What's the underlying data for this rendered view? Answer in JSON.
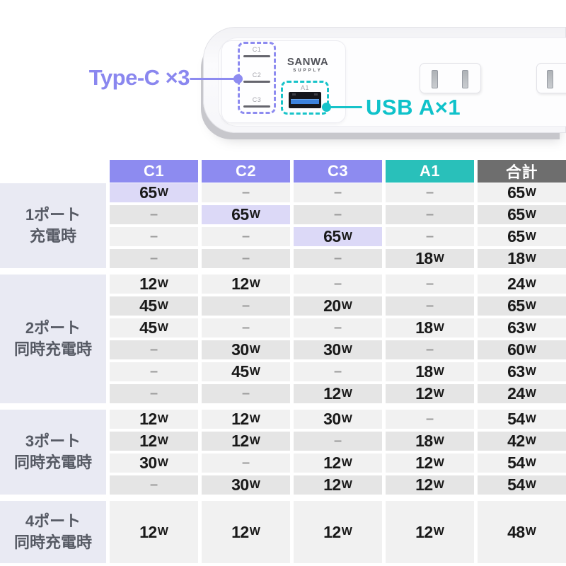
{
  "hero": {
    "type_c_callout": "Type-C ×3",
    "usb_a_callout": "USB A×1",
    "brand_name": "SANWA",
    "brand_sub": "SUPPLY",
    "ports": {
      "c1": "C1",
      "c2": "C2",
      "c3": "C3",
      "a1": "A1"
    },
    "colors": {
      "type_c": "#8d8bf0",
      "usb_a": "#17c3c9"
    }
  },
  "table": {
    "empty_cell": "–",
    "highlight_color": "#dcd9f7",
    "columns": [
      {
        "id": "c1",
        "label": "C1",
        "color": "#8d8bf0"
      },
      {
        "id": "c2",
        "label": "C2",
        "color": "#8d8bf0"
      },
      {
        "id": "c3",
        "label": "C3",
        "color": "#8d8bf0"
      },
      {
        "id": "a1",
        "label": "A1",
        "color": "#29c0ba"
      },
      {
        "id": "total",
        "label": "合計",
        "color": "#6e6e6e"
      }
    ],
    "groups": [
      {
        "label_lines": [
          "1ポート",
          "充電時"
        ],
        "rows": [
          {
            "cells": [
              "65W",
              null,
              null,
              null,
              "65W"
            ],
            "highlight": 0
          },
          {
            "cells": [
              null,
              "65W",
              null,
              null,
              "65W"
            ],
            "highlight": 1
          },
          {
            "cells": [
              null,
              null,
              "65W",
              null,
              "65W"
            ],
            "highlight": 2
          },
          {
            "cells": [
              null,
              null,
              null,
              "18W",
              "18W"
            ]
          }
        ]
      },
      {
        "label_lines": [
          "2ポート",
          "同時充電時"
        ],
        "rows": [
          {
            "cells": [
              "12W",
              "12W",
              null,
              null,
              "24W"
            ]
          },
          {
            "cells": [
              "45W",
              null,
              "20W",
              null,
              "65W"
            ]
          },
          {
            "cells": [
              "45W",
              null,
              null,
              "18W",
              "63W"
            ]
          },
          {
            "cells": [
              null,
              "30W",
              "30W",
              null,
              "60W"
            ]
          },
          {
            "cells": [
              null,
              "45W",
              null,
              "18W",
              "63W"
            ]
          },
          {
            "cells": [
              null,
              null,
              "12W",
              "12W",
              "24W"
            ]
          }
        ]
      },
      {
        "label_lines": [
          "3ポート",
          "同時充電時"
        ],
        "rows": [
          {
            "cells": [
              "12W",
              "12W",
              "30W",
              null,
              "54W"
            ]
          },
          {
            "cells": [
              "12W",
              "12W",
              null,
              "18W",
              "42W"
            ]
          },
          {
            "cells": [
              "30W",
              null,
              "12W",
              "12W",
              "54W"
            ]
          },
          {
            "cells": [
              null,
              "30W",
              "12W",
              "12W",
              "54W"
            ]
          }
        ]
      },
      {
        "label_lines": [
          "4ポート",
          "同時充電時"
        ],
        "rows": [
          {
            "cells": [
              "12W",
              "12W",
              "12W",
              "12W",
              "48W"
            ]
          }
        ]
      }
    ]
  }
}
